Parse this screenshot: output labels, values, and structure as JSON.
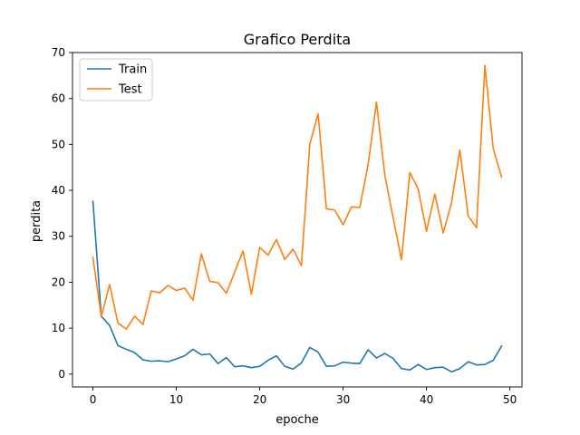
{
  "chart_data": {
    "type": "line",
    "title": "Grafico Perdita",
    "xlabel": "epoche",
    "ylabel": "perdita",
    "xlim": [
      -2.45,
      51.45
    ],
    "ylim": [
      -2.8,
      70
    ],
    "xticks": [
      0,
      10,
      20,
      30,
      40,
      50
    ],
    "yticks": [
      0,
      10,
      20,
      30,
      40,
      50,
      60,
      70
    ],
    "grid": false,
    "legend_position": "top-left",
    "x": [
      0,
      1,
      2,
      3,
      4,
      5,
      6,
      7,
      8,
      9,
      10,
      11,
      12,
      13,
      14,
      15,
      16,
      17,
      18,
      19,
      20,
      21,
      22,
      23,
      24,
      25,
      26,
      27,
      28,
      29,
      30,
      31,
      32,
      33,
      34,
      35,
      36,
      37,
      38,
      39,
      40,
      41,
      42,
      43,
      44,
      45,
      46,
      47,
      48,
      49
    ],
    "series": [
      {
        "name": "Train",
        "color": "#1f77b4",
        "values": [
          37.6,
          12.6,
          10.6,
          6.2,
          5.4,
          4.7,
          3.1,
          2.8,
          2.9,
          2.7,
          3.3,
          4.0,
          5.4,
          4.2,
          4.4,
          2.3,
          3.6,
          1.6,
          1.8,
          1.4,
          1.7,
          3.0,
          4.0,
          1.7,
          1.1,
          2.4,
          5.8,
          4.8,
          1.7,
          1.8,
          2.6,
          2.4,
          2.3,
          5.3,
          3.5,
          4.5,
          3.4,
          1.2,
          0.9,
          2.1,
          1.0,
          1.4,
          1.5,
          0.5,
          1.2,
          2.7,
          2.0,
          2.1,
          3.0,
          6.1
        ]
      },
      {
        "name": "Test",
        "color": "#ff7f0e",
        "values": [
          25.4,
          12.5,
          19.5,
          11.1,
          9.8,
          12.6,
          10.8,
          18.1,
          17.7,
          19.3,
          18.2,
          18.7,
          16.1,
          26.2,
          20.2,
          19.9,
          17.6,
          22.2,
          26.8,
          17.4,
          27.6,
          25.9,
          29.3,
          25.0,
          27.2,
          23.6,
          50.0,
          56.7,
          36.0,
          35.7,
          32.5,
          36.4,
          36.3,
          45.6,
          59.2,
          43.3,
          34.0,
          24.9,
          43.9,
          40.3,
          31.1,
          39.2,
          30.7,
          37.3,
          48.8,
          34.4,
          31.9,
          67.2,
          49.1,
          42.9
        ]
      }
    ]
  }
}
